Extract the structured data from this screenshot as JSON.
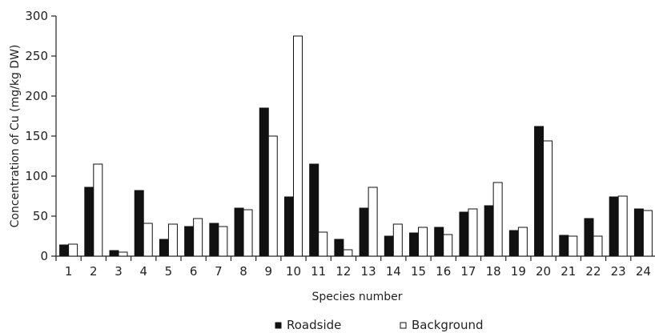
{
  "chart_data": {
    "type": "bar",
    "title": "",
    "xlabel": "Species number",
    "ylabel": "Concentration of Cu (mg/kg DW)",
    "ylim": [
      0,
      300
    ],
    "yticks": [
      0,
      50,
      100,
      150,
      200,
      250,
      300
    ],
    "grid": false,
    "legend_position": "bottom-center",
    "categories": [
      "1",
      "2",
      "3",
      "4",
      "5",
      "6",
      "7",
      "8",
      "9",
      "10",
      "11",
      "12",
      "13",
      "14",
      "15",
      "16",
      "17",
      "18",
      "19",
      "20",
      "21",
      "22",
      "23",
      "24"
    ],
    "series": [
      {
        "name": "Roadside",
        "color": "#111111",
        "values": [
          14,
          86,
          7,
          82,
          21,
          37,
          41,
          60,
          185,
          74,
          115,
          21,
          60,
          25,
          29,
          36,
          55,
          63,
          32,
          162,
          26,
          47,
          74,
          59
        ]
      },
      {
        "name": "Background",
        "color": "#ffffff",
        "values": [
          15,
          115,
          5,
          41,
          40,
          47,
          37,
          58,
          150,
          275,
          30,
          8,
          86,
          40,
          36,
          27,
          59,
          92,
          36,
          144,
          25,
          25,
          75,
          57
        ]
      }
    ]
  }
}
